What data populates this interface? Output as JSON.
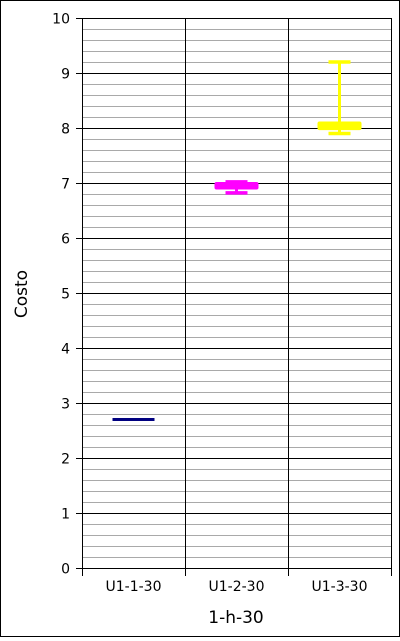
{
  "chart_data": {
    "type": "boxplot",
    "title": "",
    "xlabel": "1-h-30",
    "ylabel": "Costo",
    "ylim": [
      0,
      10
    ],
    "y_major_step": 1,
    "y_minor_step": 0.2,
    "grid": true,
    "categories": [
      "U1-1-30",
      "U1-2-30",
      "U1-3-30"
    ],
    "boxes": [
      {
        "category": "U1-1-30",
        "color": "#000080",
        "min": 2.7,
        "q1": 2.7,
        "median": 2.7,
        "q3": 2.7,
        "max": 2.7
      },
      {
        "category": "U1-2-30",
        "color": "#ff00ff",
        "min": 6.82,
        "q1": 6.9,
        "median": 6.95,
        "q3": 7.0,
        "max": 7.02
      },
      {
        "category": "U1-3-30",
        "color": "#ffff00",
        "min": 7.9,
        "q1": 7.98,
        "median": 8.05,
        "q3": 8.1,
        "max": 9.2
      }
    ]
  }
}
